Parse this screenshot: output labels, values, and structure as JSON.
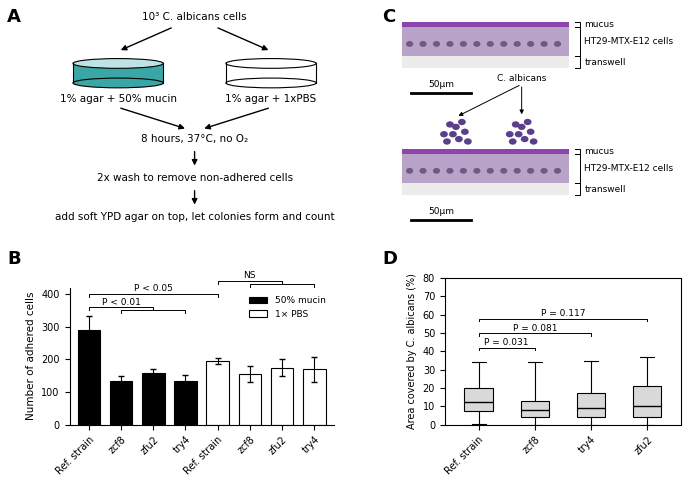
{
  "panel_labels": [
    "A",
    "B",
    "C",
    "D"
  ],
  "panel_A": {
    "start": "10³ C. albicans cells",
    "left_dish": "1% agar + 50% mucin",
    "right_dish": "1% agar + 1xPBS",
    "steps": [
      "8 hours, 37°C, no O₂",
      "2x wash to remove non-adhered cells",
      "add soft YPD agar on top, let colonies form and count"
    ]
  },
  "panel_C": {
    "images": [
      {
        "labels": [
          "mucus",
          "HT29-MTX-E12 cells",
          "transwell"
        ],
        "scale_bar": "50μm"
      },
      {
        "labels": [
          "mucus",
          "HT29-MTX-E12 cells",
          "transwell"
        ],
        "scale_bar": "50μm",
        "annotation": "C. albicans"
      }
    ]
  },
  "chart_data": [
    {
      "type": "bar",
      "y_label": "Number of adhered cells",
      "categories": [
        "Ref. strain",
        "zcf8",
        "zfu2",
        "try4",
        "Ref. strain",
        "zcf8",
        "zfu2",
        "try4"
      ],
      "series": [
        {
          "name": "50% mucin",
          "color": "#000000",
          "values": [
            290,
            135,
            160,
            135,
            null,
            null,
            null,
            null
          ],
          "errors": [
            45,
            15,
            12,
            18,
            null,
            null,
            null,
            null
          ]
        },
        {
          "name": "1× PBS",
          "color": "#ffffff",
          "values": [
            null,
            null,
            null,
            null,
            195,
            155,
            175,
            170
          ],
          "errors": [
            null,
            null,
            null,
            null,
            10,
            25,
            25,
            38
          ]
        }
      ],
      "ylim": [
        0,
        420
      ],
      "yticks": [
        0,
        100,
        200,
        300,
        400
      ],
      "legend": "upper right",
      "annotations": [
        "P < 0.01",
        "P < 0.05",
        "NS"
      ]
    },
    {
      "type": "box",
      "y_label": "Area covered by C. albicans (%)",
      "categories": [
        "Ref. strain",
        "zcf8",
        "try4",
        "zfu2"
      ],
      "boxes": [
        {
          "min": 0.5,
          "q1": 7.5,
          "median": 12.5,
          "q3": 20,
          "max": 34
        },
        {
          "min": 0,
          "q1": 4,
          "median": 8,
          "q3": 13,
          "max": 34
        },
        {
          "min": 0,
          "q1": 4,
          "median": 9,
          "q3": 17,
          "max": 35
        },
        {
          "min": 0,
          "q1": 4,
          "median": 10,
          "q3": 21,
          "max": 37
        }
      ],
      "color": "#d9d9d9",
      "ylim": [
        0,
        80
      ],
      "yticks": [
        0,
        10,
        20,
        30,
        40,
        50,
        60,
        70,
        80
      ],
      "annotations": [
        "P = 0.031",
        "P = 0.081",
        "P = 0.117"
      ]
    }
  ]
}
